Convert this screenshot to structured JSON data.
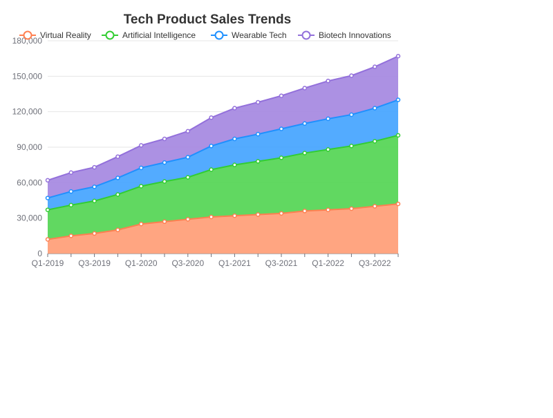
{
  "chart_data": {
    "type": "area",
    "stacked": true,
    "title": "Tech Product Sales Trends",
    "xlabel": "",
    "ylabel": "",
    "ylim": [
      0,
      180000
    ],
    "yticks": [
      0,
      30000,
      60000,
      90000,
      120000,
      150000,
      180000
    ],
    "ytick_labels": [
      "0",
      "30,000",
      "60,000",
      "90,000",
      "120,000",
      "150,000",
      "180,000"
    ],
    "categories": [
      "Q1-2019",
      "Q2-2019",
      "Q3-2019",
      "Q4-2019",
      "Q1-2020",
      "Q2-2020",
      "Q3-2020",
      "Q4-2020",
      "Q1-2021",
      "Q2-2021",
      "Q3-2021",
      "Q4-2021",
      "Q1-2022",
      "Q2-2022",
      "Q3-2022",
      "Q4-2022"
    ],
    "xtick_labels": [
      {
        "index": 0,
        "label": "Q1-2019"
      },
      {
        "index": 2,
        "label": "Q3-2019"
      },
      {
        "index": 4,
        "label": "Q1-2020"
      },
      {
        "index": 6,
        "label": "Q3-2020"
      },
      {
        "index": 8,
        "label": "Q1-2021"
      },
      {
        "index": 10,
        "label": "Q3-2021"
      },
      {
        "index": 12,
        "label": "Q1-2022"
      },
      {
        "index": 14,
        "label": "Q3-2022"
      }
    ],
    "grid": true,
    "legend_position": "top",
    "series": [
      {
        "name": "Virtual Reality",
        "color": "#ff7f50",
        "fill": "#ffa07a",
        "values": [
          12000,
          15000,
          17000,
          20000,
          25000,
          27000,
          29000,
          31000,
          32000,
          33000,
          34000,
          36000,
          37000,
          38000,
          40000,
          42000
        ]
      },
      {
        "name": "Artificial Intelligence",
        "color": "#32cd32",
        "fill": "#59d659",
        "values": [
          25000,
          26000,
          27500,
          30000,
          32000,
          34000,
          35500,
          40000,
          43000,
          45000,
          47000,
          49000,
          51000,
          53000,
          55000,
          58000
        ]
      },
      {
        "name": "Wearable Tech",
        "color": "#1e90ff",
        "fill": "#4aa7ff",
        "values": [
          10000,
          11500,
          12000,
          14000,
          15500,
          16000,
          17000,
          20000,
          22000,
          23000,
          24500,
          25000,
          26000,
          26500,
          28000,
          30000
        ]
      },
      {
        "name": "Biotech Innovations",
        "color": "#9370db",
        "fill": "#a88be2",
        "values": [
          15000,
          16000,
          16500,
          18000,
          19000,
          20000,
          22000,
          24000,
          26000,
          27000,
          28000,
          30000,
          32000,
          33000,
          35000,
          37000
        ]
      }
    ]
  }
}
